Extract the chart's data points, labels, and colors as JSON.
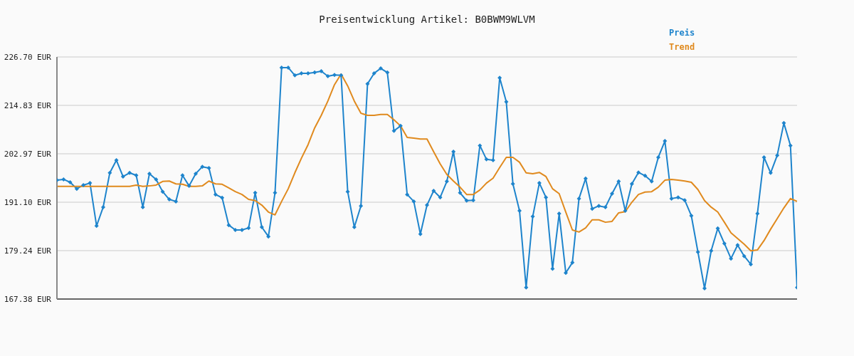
{
  "chart_data": {
    "type": "line",
    "title": "Preisentwicklung Artikel: B0BWM9WLVM",
    "categories": [
      null,
      null,
      null,
      null,
      null,
      null,
      null,
      null,
      null,
      null,
      null,
      null,
      null,
      null,
      null,
      null,
      null,
      null,
      null,
      null,
      null,
      null,
      null,
      null,
      null,
      null,
      null,
      null,
      null,
      null,
      null,
      null,
      null,
      null,
      null,
      null,
      null,
      null,
      null,
      null,
      null,
      null,
      null,
      null,
      null,
      null,
      null,
      null,
      null,
      null,
      null,
      null,
      null,
      null,
      null,
      null,
      null,
      null,
      null,
      null,
      null,
      null,
      null,
      null,
      null,
      null,
      null,
      null,
      null,
      null,
      null,
      null,
      null,
      null,
      null,
      null,
      null,
      null,
      null,
      null,
      null,
      null,
      null,
      null,
      null,
      null,
      null,
      null,
      null,
      null,
      null,
      null,
      null,
      null,
      null,
      null,
      null,
      null,
      null,
      null,
      null,
      null,
      null,
      null,
      null,
      null,
      null,
      null,
      null,
      null,
      null,
      null,
      null
    ],
    "series": [
      {
        "name": "Preis",
        "color": "#1e84cc",
        "marker": "diamond",
        "values": [
          196.5,
          196.7,
          196.0,
          194.4,
          195.3,
          195.8,
          185.3,
          189.9,
          198.3,
          201.4,
          197.4,
          198.3,
          197.7,
          189.9,
          198.1,
          196.7,
          193.7,
          191.8,
          191.3,
          197.7,
          195.1,
          198.1,
          199.8,
          199.5,
          193.0,
          192.2,
          185.5,
          184.3,
          184.3,
          184.8,
          193.4,
          185.0,
          182.7,
          193.4,
          224.1,
          224.1,
          222.2,
          222.7,
          222.7,
          222.9,
          223.2,
          222.0,
          222.3,
          222.2,
          193.7,
          185.0,
          190.2,
          220.1,
          222.7,
          223.9,
          222.9,
          208.6,
          209.8,
          193.0,
          191.3,
          183.3,
          190.4,
          193.9,
          192.3,
          196.2,
          203.5,
          193.4,
          191.5,
          191.6,
          205.0,
          201.6,
          201.4,
          221.6,
          215.7,
          195.6,
          189.0,
          170.2,
          187.6,
          195.8,
          192.3,
          174.8,
          188.3,
          173.8,
          176.3,
          192.0,
          196.9,
          189.5,
          190.2,
          189.9,
          193.2,
          196.2,
          189.0,
          195.6,
          198.4,
          197.6,
          196.2,
          202.1,
          206.1,
          192.0,
          192.3,
          191.6,
          187.8,
          178.9,
          170.0,
          179.2,
          184.7,
          181.0,
          177.3,
          180.6,
          177.9,
          175.9,
          188.3,
          202.1,
          198.3,
          202.6,
          210.5,
          205.0,
          170.2
        ]
      },
      {
        "name": "Trend",
        "color": "#e08a1e",
        "marker": "none",
        "values": [
          195.0,
          195.0,
          195.0,
          195.0,
          195.0,
          195.0,
          195.0,
          195.0,
          195.0,
          195.0,
          195.0,
          195.0,
          195.3,
          195.0,
          195.1,
          195.3,
          196.2,
          196.3,
          195.6,
          195.5,
          195.0,
          195.0,
          195.1,
          196.3,
          195.6,
          195.5,
          194.6,
          193.7,
          193.0,
          191.8,
          191.5,
          190.4,
          188.7,
          188.0,
          191.3,
          194.4,
          198.3,
          201.9,
          205.2,
          209.3,
          212.4,
          215.9,
          219.9,
          222.5,
          219.6,
          215.9,
          212.9,
          212.4,
          212.4,
          212.6,
          212.6,
          211.3,
          209.8,
          207.0,
          206.8,
          206.6,
          206.6,
          203.5,
          200.5,
          197.9,
          196.3,
          194.8,
          193.0,
          193.0,
          194.1,
          195.8,
          197.0,
          199.6,
          202.1,
          202.1,
          200.9,
          198.3,
          198.1,
          198.4,
          197.4,
          194.4,
          193.2,
          188.7,
          184.3,
          183.8,
          184.8,
          186.8,
          186.8,
          186.2,
          186.4,
          188.5,
          188.8,
          191.1,
          193.0,
          193.6,
          193.7,
          194.8,
          196.5,
          196.7,
          196.5,
          196.3,
          196.0,
          194.2,
          191.5,
          189.9,
          188.7,
          186.2,
          183.6,
          182.2,
          180.8,
          179.2,
          179.4,
          181.7,
          184.5,
          187.1,
          189.7,
          192.0,
          191.3
        ]
      }
    ],
    "ylim": [
      167.38,
      226.7
    ],
    "yticks": [
      {
        "value": 167.38,
        "label": "167.38 EUR"
      },
      {
        "value": 179.24,
        "label": "179.24 EUR"
      },
      {
        "value": 191.1,
        "label": "191.10 EUR"
      },
      {
        "value": 202.97,
        "label": "202.97 EUR"
      },
      {
        "value": 214.83,
        "label": "214.83 EUR"
      },
      {
        "value": 226.7,
        "label": "226.70 EUR"
      }
    ],
    "grid": "y",
    "legend": "top right",
    "tick_labels": "y",
    "line_style": "solid"
  }
}
